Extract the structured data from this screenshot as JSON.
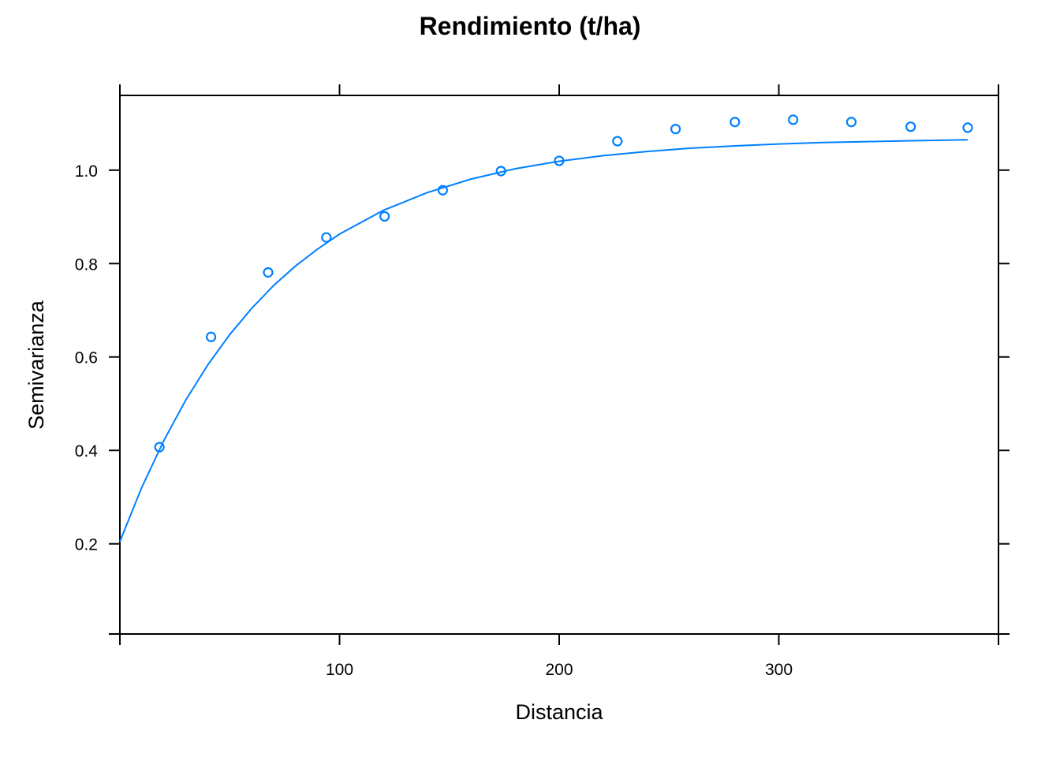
{
  "chart_data": {
    "type": "scatter",
    "title": "Rendimiento (t/ha)",
    "xlabel": "Distancia",
    "ylabel": "Semivarianza",
    "xlim": [
      0,
      400
    ],
    "ylim": [
      0.007,
      1.16
    ],
    "x_ticks": [
      100,
      200,
      300
    ],
    "x_tick_labels": [
      "100",
      "200",
      "300"
    ],
    "y_ticks": [
      0.2,
      0.4,
      0.6,
      0.8,
      1.0
    ],
    "y_tick_labels": [
      "0.2",
      "0.4",
      "0.6",
      "0.8",
      "1.0"
    ],
    "grid": false,
    "legend": "none",
    "series": [
      {
        "kind": "points",
        "color": "#0080ff",
        "x": [
          18,
          41.5,
          67.5,
          94,
          120.5,
          147,
          173.5,
          200,
          226.5,
          253,
          280,
          306.5,
          333,
          360,
          386
        ],
        "y": [
          0.407,
          0.643,
          0.781,
          0.856,
          0.901,
          0.957,
          0.998,
          1.02,
          1.062,
          1.088,
          1.103,
          1.108,
          1.103,
          1.093,
          1.091
        ]
      },
      {
        "kind": "fitted-curve",
        "color": "#0080ff",
        "x": [
          0,
          10,
          20,
          30,
          40,
          50,
          60,
          70,
          80,
          90,
          100,
          120,
          140,
          160,
          180,
          200,
          220,
          240,
          260,
          280,
          300,
          320,
          340,
          360,
          386
        ],
        "y": [
          0.205,
          0.321,
          0.421,
          0.508,
          0.583,
          0.648,
          0.704,
          0.753,
          0.795,
          0.831,
          0.863,
          0.914,
          0.952,
          0.981,
          1.003,
          1.019,
          1.031,
          1.04,
          1.047,
          1.052,
          1.056,
          1.059,
          1.061,
          1.063,
          1.065
        ]
      }
    ]
  }
}
